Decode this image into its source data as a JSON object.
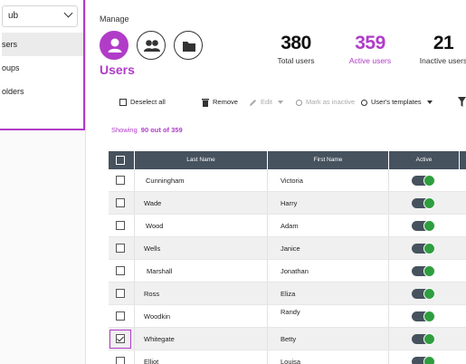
{
  "sidebar": {
    "select_value": "ub",
    "items": [
      {
        "label": "sers",
        "active": true
      },
      {
        "label": "oups",
        "active": false
      },
      {
        "label": "olders",
        "active": false
      }
    ]
  },
  "manage": {
    "label": "Manage",
    "title": "Users",
    "categories": [
      {
        "name": "users-category",
        "icon": "user-icon",
        "active": true
      },
      {
        "name": "groups-category",
        "icon": "group-icon",
        "active": false
      },
      {
        "name": "folders-category",
        "icon": "folder-icon",
        "active": false
      }
    ]
  },
  "stats": {
    "total": {
      "value": "380",
      "label": "Total users"
    },
    "active": {
      "value": "359",
      "label": "Active users"
    },
    "inactive": {
      "value": "21",
      "label": "Inactive users"
    }
  },
  "toolbar": {
    "deselect_all": "Deselect all",
    "remove": "Remove",
    "edit": "Edit",
    "mark_inactive": "Mark as inactive",
    "user_templates": "User's templates"
  },
  "showing": {
    "prefix": "Showing",
    "count": "90 out of 359"
  },
  "table": {
    "columns": [
      "Last Name",
      "First Name",
      "Active"
    ],
    "rows": [
      {
        "last": "Cunningham",
        "first": "Victoria",
        "active": true,
        "checked": false
      },
      {
        "last": "Wade",
        "first": "Harry",
        "active": true,
        "checked": false
      },
      {
        "last": "Wood",
        "first": "Adam",
        "active": true,
        "checked": false
      },
      {
        "last": "Wells",
        "first": "Janice",
        "active": true,
        "checked": false
      },
      {
        "last": "Marshall",
        "first": "Jonathan",
        "active": true,
        "checked": false
      },
      {
        "last": "Ross",
        "first": "Eliza",
        "active": true,
        "checked": false
      },
      {
        "last": "Woodkin",
        "first": "Randy",
        "active": true,
        "checked": false
      },
      {
        "last": "Whitegate",
        "first": "Betty",
        "active": true,
        "checked": true
      },
      {
        "last": "Elliot",
        "first": "Louisa",
        "active": true,
        "checked": false
      }
    ]
  },
  "colors": {
    "accent": "#b03cc8",
    "header": "#46525e",
    "toggle_on": "#2f9e3f"
  }
}
